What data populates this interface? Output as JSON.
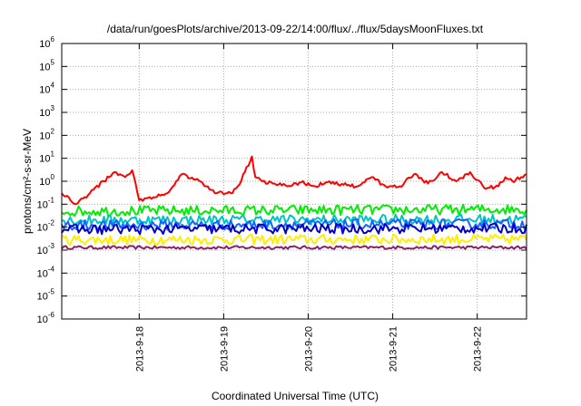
{
  "chart_data": {
    "type": "line",
    "title": "/data/run/goesPlots/archive/2013-09-22/14:00/flux/../flux/5daysMoonFluxes.txt",
    "xlabel": "Coordinated Universal Time (UTC)",
    "ylabel": "protons/cm²-s-sr-MeV",
    "y_scale": "log",
    "ylim": [
      1e-06,
      1000000.0
    ],
    "y_ticks": [
      {
        "value": 1e-06,
        "base": "10",
        "exp": "-6"
      },
      {
        "value": 1e-05,
        "base": "10",
        "exp": "-5"
      },
      {
        "value": 0.0001,
        "base": "10",
        "exp": "-4"
      },
      {
        "value": 0.001,
        "base": "10",
        "exp": "-3"
      },
      {
        "value": 0.01,
        "base": "10",
        "exp": "-2"
      },
      {
        "value": 0.1,
        "base": "10",
        "exp": "-1"
      },
      {
        "value": 1,
        "base": "10",
        "exp": "0"
      },
      {
        "value": 10,
        "base": "10",
        "exp": "1"
      },
      {
        "value": 100,
        "base": "10",
        "exp": "2"
      },
      {
        "value": 1000,
        "base": "10",
        "exp": "3"
      },
      {
        "value": 10000,
        "base": "10",
        "exp": "4"
      },
      {
        "value": 100000,
        "base": "10",
        "exp": "5"
      },
      {
        "value": 1000000,
        "base": "10",
        "exp": "6"
      }
    ],
    "xlim": [
      "2013-09-17 02:00",
      "2013-09-22 14:00"
    ],
    "x_ticks": [
      "2013-9-18",
      "2013-9-19",
      "2013-9-20",
      "2013-9-21",
      "2013-9-22"
    ],
    "grid": true,
    "legend": "none",
    "series": [
      {
        "color": "#ff0000",
        "x": [
          "2013-09-17 02:00",
          "2013-09-17 06:00",
          "2013-09-17 10:00",
          "2013-09-17 14:00",
          "2013-09-17 17:00",
          "2013-09-17 20:00",
          "2013-09-17 22:00",
          "2013-09-18 00:00",
          "2013-09-18 04:00",
          "2013-09-18 08:00",
          "2013-09-18 12:00",
          "2013-09-18 16:00",
          "2013-09-18 19:00",
          "2013-09-18 22:00",
          "2013-09-19 02:00",
          "2013-09-19 04:00",
          "2013-09-19 06:00",
          "2013-09-19 08:00",
          "2013-09-19 09:00",
          "2013-09-19 11:00",
          "2013-09-19 14:00",
          "2013-09-19 18:00",
          "2013-09-19 22:00",
          "2013-09-20 02:00",
          "2013-09-20 06:00",
          "2013-09-20 10:00",
          "2013-09-20 14:00",
          "2013-09-20 18:00",
          "2013-09-20 22:00",
          "2013-09-21 02:00",
          "2013-09-21 06:00",
          "2013-09-21 10:00",
          "2013-09-21 14:00",
          "2013-09-21 18:00",
          "2013-09-21 22:00",
          "2013-09-22 02:00",
          "2013-09-22 06:00",
          "2013-09-22 08:00",
          "2013-09-22 10:00",
          "2013-09-22 14:00"
        ],
        "y": [
          0.3,
          0.1,
          0.3,
          1.0,
          2.5,
          1.5,
          3.0,
          0.15,
          0.2,
          0.3,
          2.0,
          1.2,
          0.6,
          0.3,
          0.3,
          0.6,
          2.5,
          12,
          1.5,
          1.0,
          0.8,
          0.6,
          0.9,
          0.6,
          1.0,
          0.7,
          0.6,
          1.5,
          0.6,
          0.6,
          2.0,
          0.8,
          2.5,
          1.0,
          2.5,
          0.5,
          0.6,
          1.5,
          1.0,
          2.0
        ]
      },
      {
        "color": "#00ee00",
        "x": [
          "2013-09-17 02:00",
          "2013-09-22 14:00"
        ],
        "y": [
          0.05,
          0.06
        ]
      },
      {
        "color": "#00c4c4",
        "x": [
          "2013-09-17 02:00",
          "2013-09-22 14:00"
        ],
        "y": [
          0.02,
          0.022
        ]
      },
      {
        "color": "#1464ff",
        "x": [
          "2013-09-17 02:00",
          "2013-09-22 14:00"
        ],
        "y": [
          0.012,
          0.014
        ]
      },
      {
        "color": "#0000c8",
        "x": [
          "2013-09-17 02:00",
          "2013-09-22 14:00"
        ],
        "y": [
          0.008,
          0.009
        ]
      },
      {
        "color": "#ffee00",
        "x": [
          "2013-09-17 02:00",
          "2013-09-22 14:00"
        ],
        "y": [
          0.0028,
          0.003
        ]
      },
      {
        "color": "#882266",
        "x": [
          "2013-09-17 02:00",
          "2013-09-22 14:00"
        ],
        "y": [
          0.0013,
          0.0013
        ]
      }
    ]
  }
}
